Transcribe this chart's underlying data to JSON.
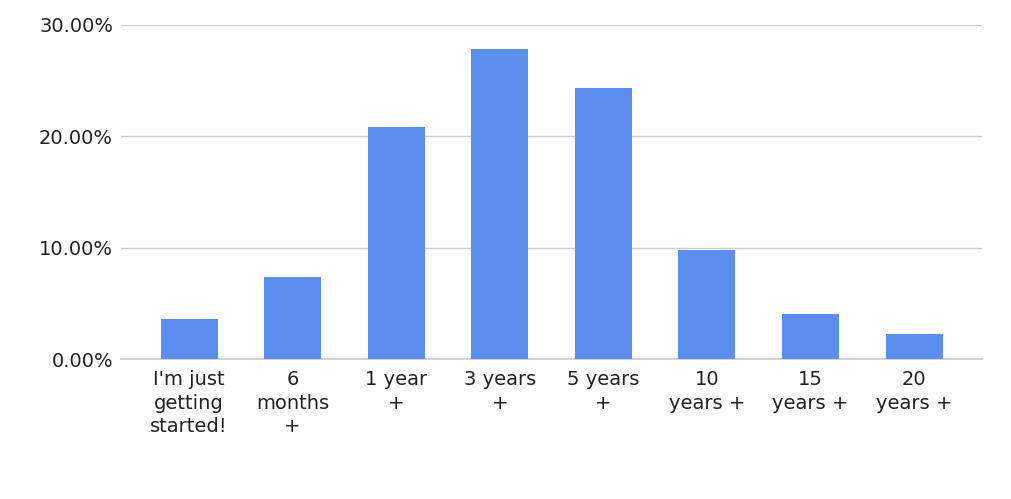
{
  "categories": [
    "I'm just\ngetting\nstarted!",
    "6\nmonths\n+",
    "1 year\n+",
    "3 years\n+",
    "5 years\n+",
    "10\nyears +",
    "15\nyears +",
    "20\nyears +"
  ],
  "values": [
    3.6,
    7.4,
    20.8,
    27.8,
    24.3,
    9.8,
    4.1,
    2.3
  ],
  "bar_color": "#5b8dee",
  "background_color": "#ffffff",
  "ylim": [
    0,
    30
  ],
  "yticks": [
    0,
    10,
    20,
    30
  ],
  "ytick_labels": [
    "0.00%",
    "10.00%",
    "20.00%",
    "30.00%"
  ],
  "grid_color": "#cccccc",
  "tick_label_color": "#222222",
  "tick_fontsize": 14,
  "bar_width": 0.55
}
